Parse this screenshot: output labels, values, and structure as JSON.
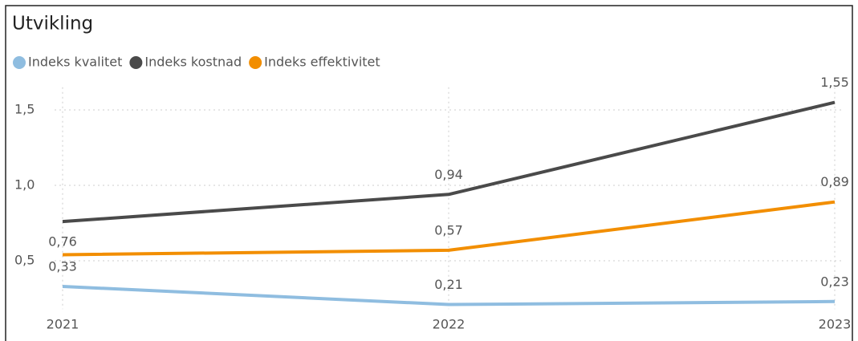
{
  "chart_data": {
    "type": "line",
    "title": "Utvikling",
    "categories": [
      "2021",
      "2022",
      "2023"
    ],
    "series": [
      {
        "name": "Indeks kvalitet",
        "color": "#8fbde0",
        "values": [
          0.33,
          0.21,
          0.23
        ],
        "value_labels": [
          "0,33",
          "0,21",
          "0,23"
        ]
      },
      {
        "name": "Indeks kostnad",
        "color": "#4a4a4a",
        "values": [
          0.76,
          0.94,
          1.55
        ],
        "value_labels": [
          "0,76",
          "0,94",
          "1,55"
        ]
      },
      {
        "name": "Indeks effektivitet",
        "color": "#f28e00",
        "values": [
          0.54,
          0.57,
          0.89
        ],
        "value_labels": [
          null,
          "0,57",
          "0,89"
        ]
      }
    ],
    "ylim": [
      0.18,
      1.65
    ],
    "yticks": [
      {
        "value": 0.5,
        "label": "0,5"
      },
      {
        "value": 1.0,
        "label": "1,0"
      },
      {
        "value": 1.5,
        "label": "1,5"
      }
    ],
    "grid": true
  }
}
